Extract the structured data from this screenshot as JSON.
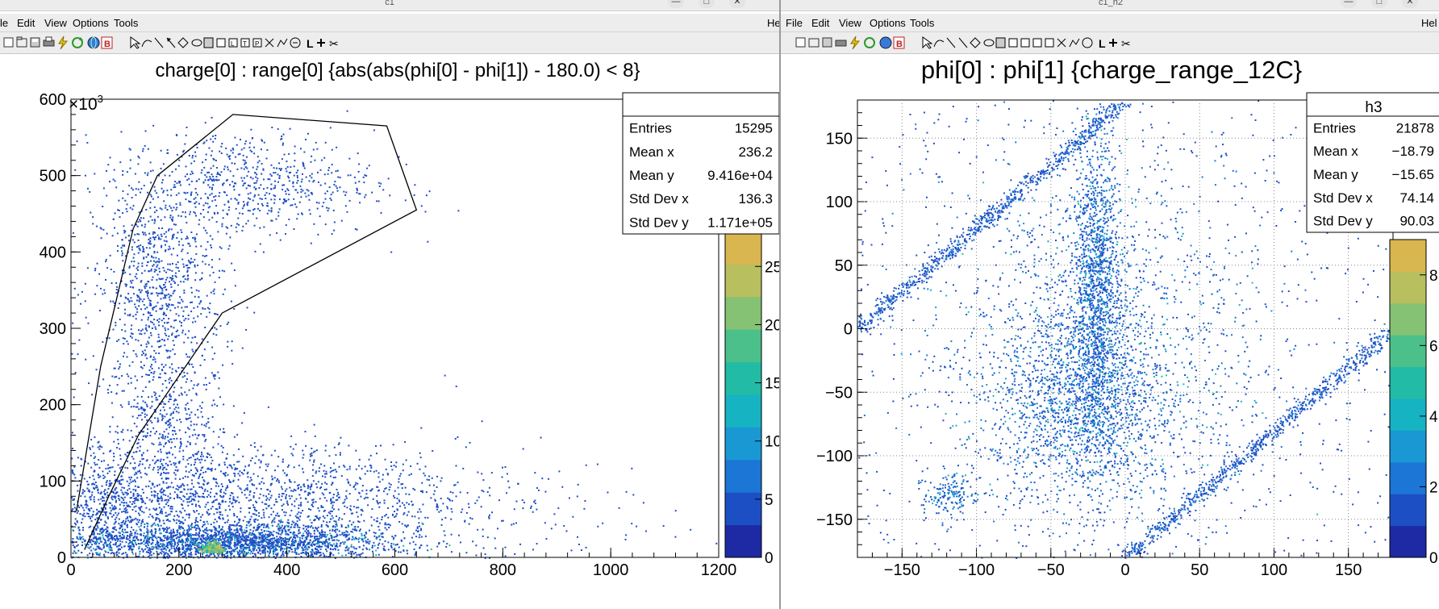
{
  "windows": {
    "left": {
      "title": "c1",
      "menu": [
        "le",
        "Edit",
        "View",
        "Options",
        "Tools"
      ],
      "right_cut_label": "He",
      "plot": {
        "title": "charge[0] : range[0] {abs(abs(phi[0] - phi[1]) - 180.0) < 8}",
        "y_exponent": "×10",
        "y_exponent_power": "3",
        "x_ticks": [
          "0",
          "200",
          "400",
          "600",
          "800",
          "1000",
          "1200"
        ],
        "y_ticks": [
          "0",
          "100",
          "200",
          "300",
          "400",
          "500",
          "600"
        ],
        "palette_ticks": [
          "0",
          "5",
          "10",
          "15",
          "20",
          "25"
        ],
        "stats": {
          "name": "",
          "rows": [
            {
              "label": "Entries",
              "value": "15295"
            },
            {
              "label": "Mean x",
              "value": "236.2"
            },
            {
              "label": "Mean y",
              "value": "9.416e+04"
            },
            {
              "label": "Std Dev x",
              "value": "136.3"
            },
            {
              "label": "Std Dev y",
              "value": "1.171e+05"
            }
          ]
        }
      }
    },
    "right": {
      "title": "c1_h2",
      "menu": [
        "File",
        "Edit",
        "View",
        "Options",
        "Tools"
      ],
      "right_cut_label": "Hel",
      "plot": {
        "title": "phi[0] : phi[1] {charge_range_12C}",
        "x_ticks": [
          "−150",
          "−100",
          "−50",
          "0",
          "50",
          "100",
          "150"
        ],
        "y_ticks": [
          "−150",
          "−100",
          "−50",
          "0",
          "50",
          "100",
          "150"
        ],
        "palette_ticks": [
          "0",
          "2",
          "4",
          "6",
          "8"
        ],
        "stats": {
          "name": "h3",
          "rows": [
            {
              "label": "Entries",
              "value": "21878"
            },
            {
              "label": "Mean x",
              "value": "−18.79"
            },
            {
              "label": "Mean y",
              "value": "−15.65"
            },
            {
              "label": "Std Dev x",
              "value": "74.14"
            },
            {
              "label": "Std Dev y",
              "value": "90.03"
            }
          ]
        }
      }
    }
  },
  "colors": {
    "palette": [
      "#1d2aa3",
      "#1d4fc4",
      "#1b76d6",
      "#1998d4",
      "#16b3c3",
      "#22bba6",
      "#4cc08a",
      "#85c273",
      "#b8bf5e",
      "#d9b64f"
    ],
    "scatter": "#1f5ad6",
    "cut": "#000000"
  },
  "chart_data": [
    {
      "type": "heatmap",
      "title": "charge[0] : range[0] {abs(abs(phi[0] - phi[1]) - 180.0) < 8}",
      "xlim": [
        0,
        1200
      ],
      "ylim": [
        0,
        600000
      ],
      "zlim": [
        0,
        28
      ],
      "cut_polygon": [
        [
          10,
          60000
        ],
        [
          55,
          250000
        ],
        [
          115,
          430000
        ],
        [
          160,
          500000
        ],
        [
          300,
          580000
        ],
        [
          585,
          565000
        ],
        [
          640,
          455000
        ],
        [
          280,
          320000
        ],
        [
          125,
          160000
        ],
        [
          70,
          80000
        ],
        [
          25,
          10000
        ]
      ],
      "regions": [
        {
          "cx": 175,
          "cy": 150000,
          "sx": 60,
          "sy": 60000,
          "n": 600
        },
        {
          "cx": 160,
          "cy": 350000,
          "sx": 60,
          "sy": 70000,
          "n": 900
        },
        {
          "cx": 320,
          "cy": 490000,
          "sx": 120,
          "sy": 35000,
          "n": 700
        },
        {
          "cx": 60,
          "cy": 60000,
          "sx": 40,
          "sy": 40000,
          "n": 500
        },
        {
          "cx": 300,
          "cy": 20000,
          "sx": 140,
          "sy": 12000,
          "n": 2500
        },
        {
          "cx": 330,
          "cy": 75000,
          "sx": 200,
          "sy": 35000,
          "n": 1400
        },
        {
          "cx": 600,
          "cy": 60000,
          "sx": 250,
          "sy": 50000,
          "n": 300
        }
      ]
    },
    {
      "type": "heatmap",
      "title": "phi[0] : phi[1] {charge_range_12C}",
      "xlim": [
        -180,
        180
      ],
      "ylim": [
        -180,
        180
      ],
      "zlim": [
        0,
        9
      ],
      "bands": [
        {
          "x0": -180,
          "y0": 0,
          "x1": 0,
          "y1": 180,
          "n": 800
        },
        {
          "x0": 0,
          "y0": -180,
          "x1": 180,
          "y1": 0,
          "n": 800
        }
      ],
      "regions": [
        {
          "cx": -20,
          "cy": 30,
          "sx": 8,
          "sy": 60,
          "n": 1400
        },
        {
          "cx": -30,
          "cy": -60,
          "sx": 30,
          "sy": 40,
          "n": 1400
        },
        {
          "cx": -15,
          "cy": -10,
          "sx": 60,
          "sy": 80,
          "n": 1400
        },
        {
          "cx": -120,
          "cy": -130,
          "sx": 8,
          "sy": 8,
          "n": 150
        },
        {
          "cx": 0,
          "cy": 0,
          "sx": 180,
          "sy": 180,
          "n": 700,
          "uniform": true
        }
      ]
    }
  ]
}
